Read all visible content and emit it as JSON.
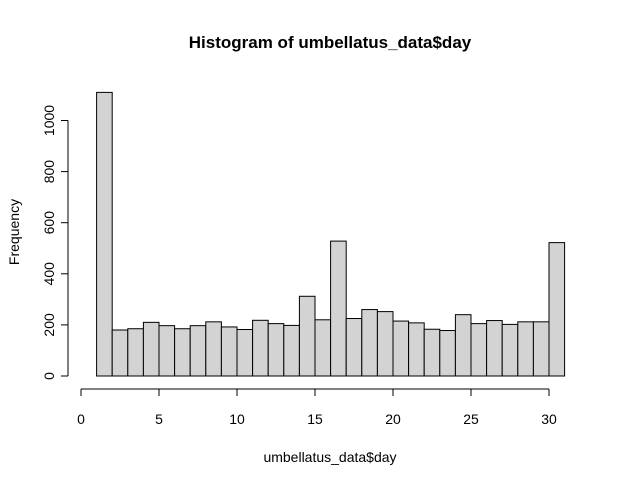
{
  "chart_data": {
    "type": "bar",
    "title": "Histogram of umbellatus_data$day",
    "xlabel": "umbellatus_data$day",
    "ylabel": "Frequency",
    "bin_edges": [
      1,
      2,
      3,
      4,
      5,
      6,
      7,
      8,
      9,
      10,
      11,
      12,
      13,
      14,
      15,
      16,
      17,
      18,
      19,
      20,
      21,
      22,
      23,
      24,
      25,
      26,
      27,
      28,
      29,
      30,
      31
    ],
    "values": [
      1110,
      180,
      185,
      210,
      197,
      185,
      197,
      212,
      192,
      182,
      218,
      205,
      198,
      312,
      220,
      528,
      225,
      260,
      252,
      215,
      208,
      183,
      178,
      240,
      205,
      217,
      202,
      212,
      212,
      522
    ],
    "xlim": [
      0,
      31
    ],
    "ylim": [
      0,
      1110
    ],
    "xticks": [
      0,
      5,
      10,
      15,
      20,
      25,
      30
    ],
    "yticks": [
      0,
      200,
      400,
      600,
      800,
      1000
    ],
    "bar_color": "#d3d3d3",
    "border_color": "#000000",
    "grid": false,
    "legend": false
  }
}
